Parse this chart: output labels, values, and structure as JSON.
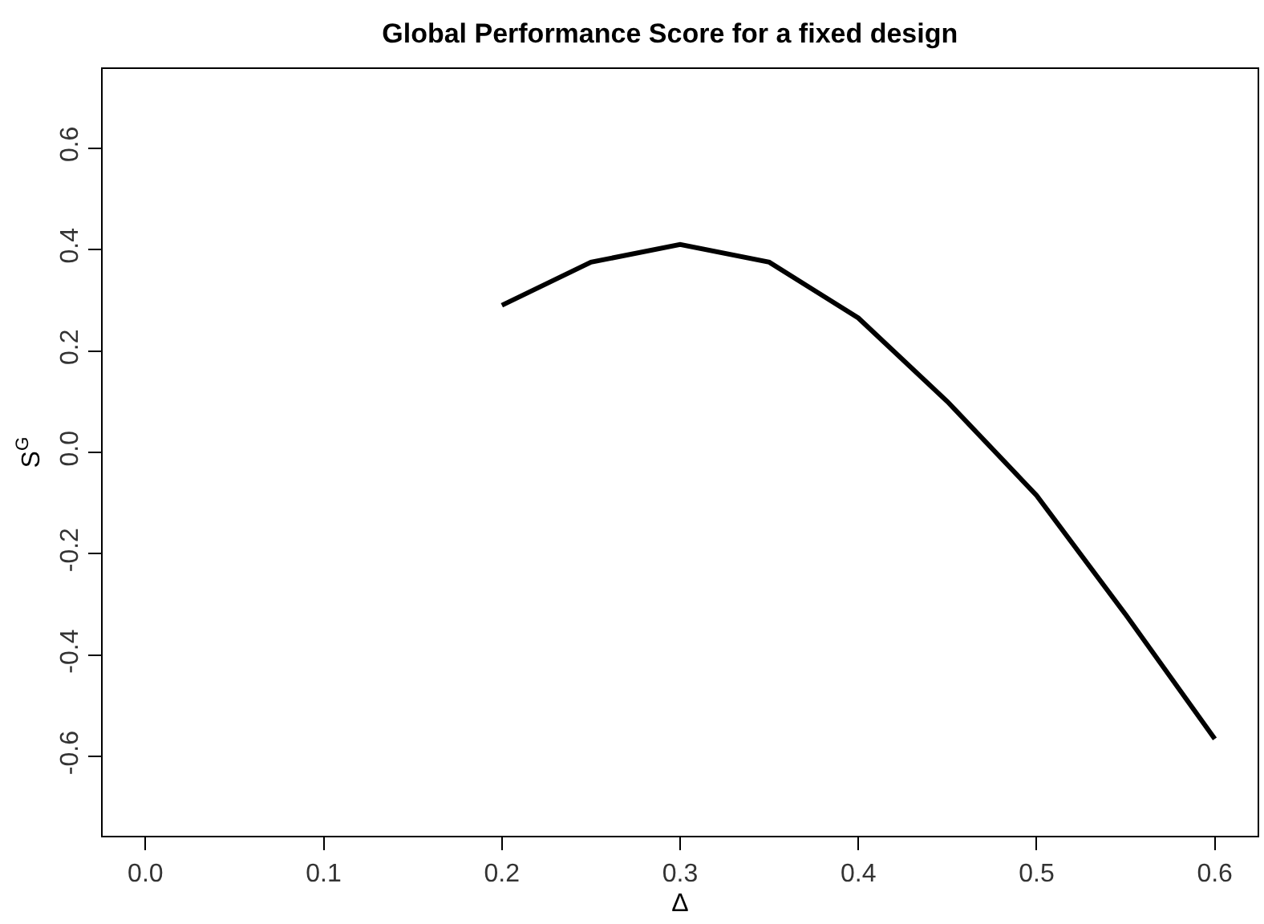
{
  "chart_data": {
    "type": "line",
    "title": "Global Performance Score for a fixed design",
    "xlabel": "Δ",
    "ylabel": "S$^{G}$",
    "x": [
      0.2,
      0.25,
      0.3,
      0.35,
      0.4,
      0.45,
      0.5,
      0.55,
      0.6
    ],
    "series": [
      {
        "color": "#000000",
        "values": [
          0.29,
          0.375,
          0.41,
          0.375,
          0.265,
          0.1,
          -0.085,
          -0.32,
          -0.565
        ]
      }
    ],
    "xlim": [
      -0.024,
      0.624
    ],
    "ylim": [
      -0.756,
      0.756
    ],
    "xticks": [
      {
        "value": 0,
        "label": "0.0"
      },
      0.1,
      0.2,
      0.3,
      0.4,
      0.5,
      0.6
    ],
    "yticks": [
      -0.6,
      -0.4,
      -0.2,
      {
        "value": 0,
        "label": "0.0"
      },
      0.2,
      0.4,
      0.6
    ]
  }
}
